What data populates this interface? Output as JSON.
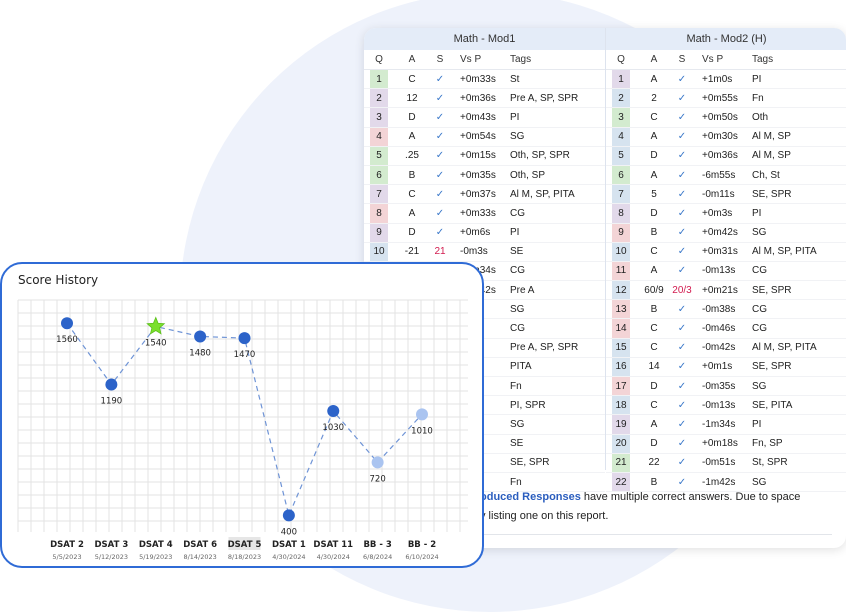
{
  "mod1": {
    "title": "Math - Mod1",
    "headers": [
      "Q",
      "A",
      "S",
      "Vs P",
      "Tags"
    ],
    "rows": [
      {
        "q": "1",
        "a": "C",
        "s": "✓",
        "vp": "+0m33s",
        "tags": "St",
        "color": "#d3ebcf"
      },
      {
        "q": "2",
        "a": "12",
        "s": "✓",
        "vp": "+0m36s",
        "tags": "Pre A, SP, SPR",
        "color": "#e2d9ea"
      },
      {
        "q": "3",
        "a": "D",
        "s": "✓",
        "vp": "+0m43s",
        "tags": "PI",
        "color": "#e2d9ea"
      },
      {
        "q": "4",
        "a": "A",
        "s": "✓",
        "vp": "+0m54s",
        "tags": "SG",
        "color": "#f3d4d6"
      },
      {
        "q": "5",
        "a": ".25",
        "s": "✓",
        "vp": "+0m15s",
        "tags": "Oth, SP, SPR",
        "color": "#d3ebcf"
      },
      {
        "q": "6",
        "a": "B",
        "s": "✓",
        "vp": "+0m35s",
        "tags": "Oth, SP",
        "color": "#d3ebcf"
      },
      {
        "q": "7",
        "a": "C",
        "s": "✓",
        "vp": "+0m37s",
        "tags": "Al M, SP, PITA",
        "color": "#e2d9ea"
      },
      {
        "q": "8",
        "a": "A",
        "s": "✓",
        "vp": "+0m33s",
        "tags": "CG",
        "color": "#f3d4d6"
      },
      {
        "q": "9",
        "a": "D",
        "s": "✓",
        "vp": "+0m6s",
        "tags": "PI",
        "color": "#e2d9ea"
      },
      {
        "q": "10",
        "a": "-21",
        "s": "21",
        "vp": "-0m3s",
        "tags": "SE",
        "color": "#d6e3ef"
      },
      {
        "q": "11",
        "a": "D",
        "s": "✓",
        "vp": "+0m34s",
        "tags": "CG",
        "color": "#f3d4d6"
      },
      {
        "q": "",
        "a": "",
        "s": "",
        "vp": "+0m42s",
        "tags": "Pre A",
        "color": ""
      },
      {
        "q": "",
        "a": "",
        "s": "",
        "vp": "0s",
        "tags": "SG",
        "color": ""
      },
      {
        "q": "",
        "a": "",
        "s": "",
        "vp": "4s",
        "tags": "CG",
        "color": ""
      },
      {
        "q": "",
        "a": "",
        "s": "",
        "vp": "8s",
        "tags": "Pre A, SP, SPR",
        "color": ""
      },
      {
        "q": "",
        "a": "",
        "s": "",
        "vp": "s",
        "tags": "PITA",
        "color": ""
      },
      {
        "q": "",
        "a": "",
        "s": "",
        "vp": "s",
        "tags": "Fn",
        "color": ""
      },
      {
        "q": "",
        "a": "",
        "s": "",
        "vp": "7s",
        "tags": "PI, SPR",
        "color": ""
      },
      {
        "q": "",
        "a": "",
        "s": "",
        "vp": "2s",
        "tags": "SG",
        "color": ""
      },
      {
        "q": "",
        "a": "",
        "s": "",
        "vp": "9s",
        "tags": "SE",
        "color": ""
      },
      {
        "q": "",
        "a": "",
        "s": "",
        "vp": "5s",
        "tags": "SE, SPR",
        "color": ""
      },
      {
        "q": "",
        "a": "",
        "s": "",
        "vp": "7s",
        "tags": "Fn",
        "color": ""
      }
    ]
  },
  "mod2": {
    "title": "Math - Mod2 (H)",
    "headers": [
      "Q",
      "A",
      "S",
      "Vs P",
      "Tags"
    ],
    "rows": [
      {
        "q": "1",
        "a": "A",
        "s": "✓",
        "vp": "+1m0s",
        "tags": "PI",
        "color": "#e2d9ea"
      },
      {
        "q": "2",
        "a": "2",
        "s": "✓",
        "vp": "+0m55s",
        "tags": "Fn",
        "color": "#d6e3ef"
      },
      {
        "q": "3",
        "a": "C",
        "s": "✓",
        "vp": "+0m50s",
        "tags": "Oth",
        "color": "#d3ebcf"
      },
      {
        "q": "4",
        "a": "A",
        "s": "✓",
        "vp": "+0m30s",
        "tags": "Al M, SP",
        "color": "#d6e3ef"
      },
      {
        "q": "5",
        "a": "D",
        "s": "✓",
        "vp": "+0m36s",
        "tags": "Al M, SP",
        "color": "#d6e3ef"
      },
      {
        "q": "6",
        "a": "A",
        "s": "✓",
        "vp": "-6m55s",
        "tags": "Ch, St",
        "color": "#d3ebcf"
      },
      {
        "q": "7",
        "a": "5",
        "s": "✓",
        "vp": "-0m11s",
        "tags": "SE, SPR",
        "color": "#d6e3ef"
      },
      {
        "q": "8",
        "a": "D",
        "s": "✓",
        "vp": "+0m3s",
        "tags": "PI",
        "color": "#e2d9ea"
      },
      {
        "q": "9",
        "a": "B",
        "s": "✓",
        "vp": "+0m42s",
        "tags": "SG",
        "color": "#f3d4d6"
      },
      {
        "q": "10",
        "a": "C",
        "s": "✓",
        "vp": "+0m31s",
        "tags": "Al M, SP, PITA",
        "color": "#d6e3ef"
      },
      {
        "q": "11",
        "a": "A",
        "s": "✓",
        "vp": "-0m13s",
        "tags": "CG",
        "color": "#f3d4d6"
      },
      {
        "q": "12",
        "a": "60/9",
        "s": "20/3",
        "vp": "+0m21s",
        "tags": "SE, SPR",
        "color": "#d6e3ef"
      },
      {
        "q": "13",
        "a": "B",
        "s": "✓",
        "vp": "-0m38s",
        "tags": "CG",
        "color": "#f3d4d6"
      },
      {
        "q": "14",
        "a": "C",
        "s": "✓",
        "vp": "-0m46s",
        "tags": "CG",
        "color": "#f3d4d6"
      },
      {
        "q": "15",
        "a": "C",
        "s": "✓",
        "vp": "-0m42s",
        "tags": "Al M, SP, PITA",
        "color": "#d6e3ef"
      },
      {
        "q": "16",
        "a": "14",
        "s": "✓",
        "vp": "+0m1s",
        "tags": "SE, SPR",
        "color": "#d6e3ef"
      },
      {
        "q": "17",
        "a": "D",
        "s": "✓",
        "vp": "-0m35s",
        "tags": "SG",
        "color": "#f3d4d6"
      },
      {
        "q": "18",
        "a": "C",
        "s": "✓",
        "vp": "-0m13s",
        "tags": "SE, PITA",
        "color": "#d6e3ef"
      },
      {
        "q": "19",
        "a": "A",
        "s": "✓",
        "vp": "-1m34s",
        "tags": "PI",
        "color": "#e2d9ea"
      },
      {
        "q": "20",
        "a": "D",
        "s": "✓",
        "vp": "+0m18s",
        "tags": "Fn, SP",
        "color": "#d6e3ef"
      },
      {
        "q": "21",
        "a": "22",
        "s": "✓",
        "vp": "-0m51s",
        "tags": "St, SPR",
        "color": "#d3ebcf"
      },
      {
        "q": "22",
        "a": "B",
        "s": "✓",
        "vp": "-1m42s",
        "tags": "SG",
        "color": "#e2d9ea"
      }
    ]
  },
  "note": {
    "link_text": "oduced Responses",
    "line1_rest": " have multiple correct answers. Due to space",
    "line2": "y listing one on this report."
  },
  "colors": {
    "accent": "#2f6bd6",
    "wrong": "#d21b4f",
    "check": "#3a78c9",
    "point_dark": "#2c63c9",
    "point_light": "#aac4f0",
    "star": "#7be02c"
  },
  "score_history": {
    "title": "Score History"
  },
  "chart_data": {
    "type": "line",
    "categories": [
      "DSAT 2",
      "DSAT 3",
      "DSAT 4",
      "DSAT 6",
      "DSAT 5",
      "DSAT 1",
      "DSAT 11",
      "BB - 3",
      "BB - 2"
    ],
    "dates": [
      "5/5/2023",
      "5/12/2023",
      "5/19/2023",
      "8/14/2023",
      "8/18/2023",
      "4/30/2024",
      "4/30/2024",
      "6/8/2024",
      "6/10/2024"
    ],
    "values": [
      1560,
      1190,
      1540,
      1480,
      1470,
      400,
      1030,
      720,
      1010
    ],
    "markers": [
      "dark",
      "dark",
      "star",
      "dark",
      "dark",
      "dark",
      "dark",
      "light",
      "light"
    ],
    "highlighted_category": "DSAT 5",
    "ylim": [
      300,
      1700
    ],
    "grid": true
  }
}
